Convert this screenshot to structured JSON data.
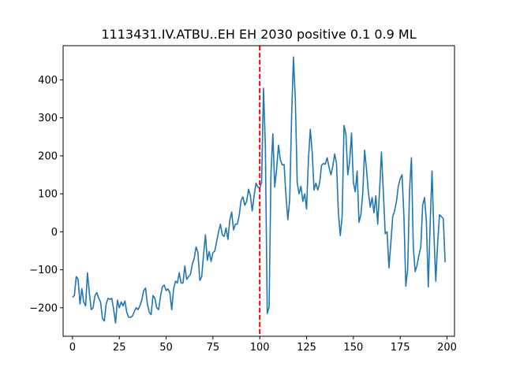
{
  "chart_data": {
    "type": "line",
    "title": "1113431.IV.ATBU..EH EH 2030 positive 0.1 0.9 ML",
    "xlabel": "",
    "ylabel": "",
    "xlim": [
      -5,
      204
    ],
    "ylim": [
      -275,
      490
    ],
    "xticks": [
      0,
      25,
      50,
      75,
      100,
      125,
      150,
      175,
      200
    ],
    "yticks": [
      -200,
      -100,
      0,
      100,
      200,
      300,
      400
    ],
    "grid": false,
    "legend": "none",
    "marker_x": 100,
    "series": [
      {
        "color": "#1f77b4",
        "x": [
          0,
          1,
          2,
          3,
          4,
          5,
          6,
          7,
          8,
          9,
          10,
          11,
          12,
          13,
          14,
          15,
          16,
          17,
          18,
          19,
          20,
          21,
          22,
          23,
          24,
          25,
          26,
          27,
          28,
          29,
          30,
          31,
          32,
          33,
          34,
          35,
          36,
          37,
          38,
          39,
          40,
          41,
          42,
          43,
          44,
          45,
          46,
          47,
          48,
          49,
          50,
          51,
          52,
          53,
          54,
          55,
          56,
          57,
          58,
          59,
          60,
          61,
          62,
          63,
          64,
          65,
          66,
          67,
          68,
          69,
          70,
          71,
          72,
          73,
          74,
          75,
          76,
          77,
          78,
          79,
          80,
          81,
          82,
          83,
          84,
          85,
          86,
          87,
          88,
          89,
          90,
          91,
          92,
          93,
          94,
          95,
          96,
          97,
          98,
          99,
          100,
          101,
          102,
          103,
          104,
          105,
          106,
          107,
          108,
          109,
          110,
          111,
          112,
          113,
          114,
          115,
          116,
          117,
          118,
          119,
          120,
          121,
          122,
          123,
          124,
          125,
          126,
          127,
          128,
          129,
          130,
          131,
          132,
          133,
          134,
          135,
          136,
          137,
          138,
          139,
          140,
          141,
          142,
          143,
          144,
          145,
          146,
          147,
          148,
          149,
          150,
          151,
          152,
          153,
          154,
          155,
          156,
          157,
          158,
          159,
          160,
          161,
          162,
          163,
          164,
          165,
          166,
          167,
          168,
          169,
          170,
          171,
          172,
          173,
          174,
          175,
          176,
          177,
          178,
          179,
          180,
          181,
          182,
          183,
          184,
          185,
          186,
          187,
          188,
          189,
          190,
          191,
          192,
          193,
          194,
          195,
          196,
          197,
          198,
          199
        ],
        "values": [
          -172,
          -168,
          -118,
          -125,
          -190,
          -150,
          -185,
          -195,
          -108,
          -160,
          -205,
          -200,
          -168,
          -160,
          -175,
          -185,
          -228,
          -235,
          -190,
          -175,
          -178,
          -175,
          -205,
          -240,
          -180,
          -200,
          -185,
          -195,
          -182,
          -212,
          -225,
          -225,
          -222,
          -210,
          -200,
          -205,
          -195,
          -180,
          -155,
          -148,
          -190,
          -212,
          -218,
          -168,
          -175,
          -200,
          -205,
          -170,
          -145,
          -140,
          -155,
          -150,
          -160,
          -205,
          -150,
          -130,
          -135,
          -108,
          -135,
          -135,
          -90,
          -125,
          -118,
          -112,
          -85,
          -70,
          -40,
          -55,
          -128,
          -118,
          -60,
          -8,
          -75,
          -52,
          -78,
          -55,
          -50,
          -25,
          0,
          20,
          -8,
          -12,
          10,
          -20,
          30,
          52,
          5,
          20,
          20,
          42,
          82,
          92,
          70,
          80,
          112,
          95,
          55,
          95,
          128,
          118,
          115,
          130,
          378,
          225,
          -215,
          -198,
          155,
          258,
          118,
          165,
          228,
          190,
          176,
          177,
          95,
          32,
          85,
          300,
          460,
          350,
          130,
          100,
          120,
          80,
          100,
          60,
          190,
          270,
          210,
          110,
          128,
          110,
          130,
          175,
          180,
          178,
          195,
          170,
          150,
          172,
          205,
          180,
          50,
          -10,
          40,
          280,
          258,
          150,
          185,
          260,
          130,
          105,
          160,
          25,
          45,
          100,
          215,
          165,
          105,
          65,
          90,
          50,
          95,
          20,
          110,
          210,
          105,
          -5,
          0,
          -95,
          -30,
          40,
          55,
          80,
          120,
          140,
          150,
          40,
          -143,
          -98,
          110,
          195,
          -40,
          -105,
          -88,
          -62,
          -40,
          70,
          90,
          25,
          -145,
          20,
          160,
          -5,
          -130,
          -30,
          45,
          40,
          35,
          -80
        ]
      }
    ]
  }
}
